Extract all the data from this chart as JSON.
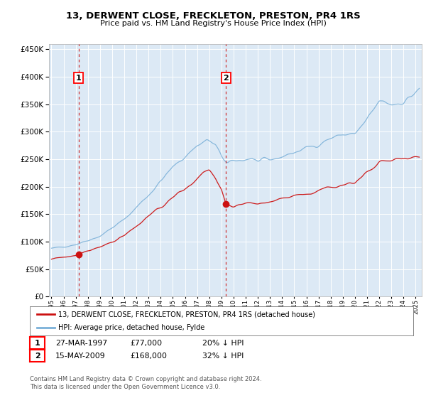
{
  "title": "13, DERWENT CLOSE, FRECKLETON, PRESTON, PR4 1RS",
  "subtitle": "Price paid vs. HM Land Registry's House Price Index (HPI)",
  "legend_line1": "13, DERWENT CLOSE, FRECKLETON, PRESTON, PR4 1RS (detached house)",
  "legend_line2": "HPI: Average price, detached house, Fylde",
  "footer": "Contains HM Land Registry data © Crown copyright and database right 2024.\nThis data is licensed under the Open Government Licence v3.0.",
  "sale1_date": "27-MAR-1997",
  "sale1_price": 77000,
  "sale1_pct": "20% ↓ HPI",
  "sale2_date": "15-MAY-2009",
  "sale2_price": 168000,
  "sale2_pct": "32% ↓ HPI",
  "sale1_year": 1997.23,
  "sale2_year": 2009.37,
  "ylim": [
    0,
    460000
  ],
  "xlim_start": 1994.8,
  "xlim_end": 2025.5,
  "bg_color": "#dce9f5",
  "grid_color": "#ffffff",
  "hpi_color": "#7ab0d8",
  "price_color": "#cc1111",
  "vline_color": "#cc1111",
  "marker_color": "#cc1111"
}
